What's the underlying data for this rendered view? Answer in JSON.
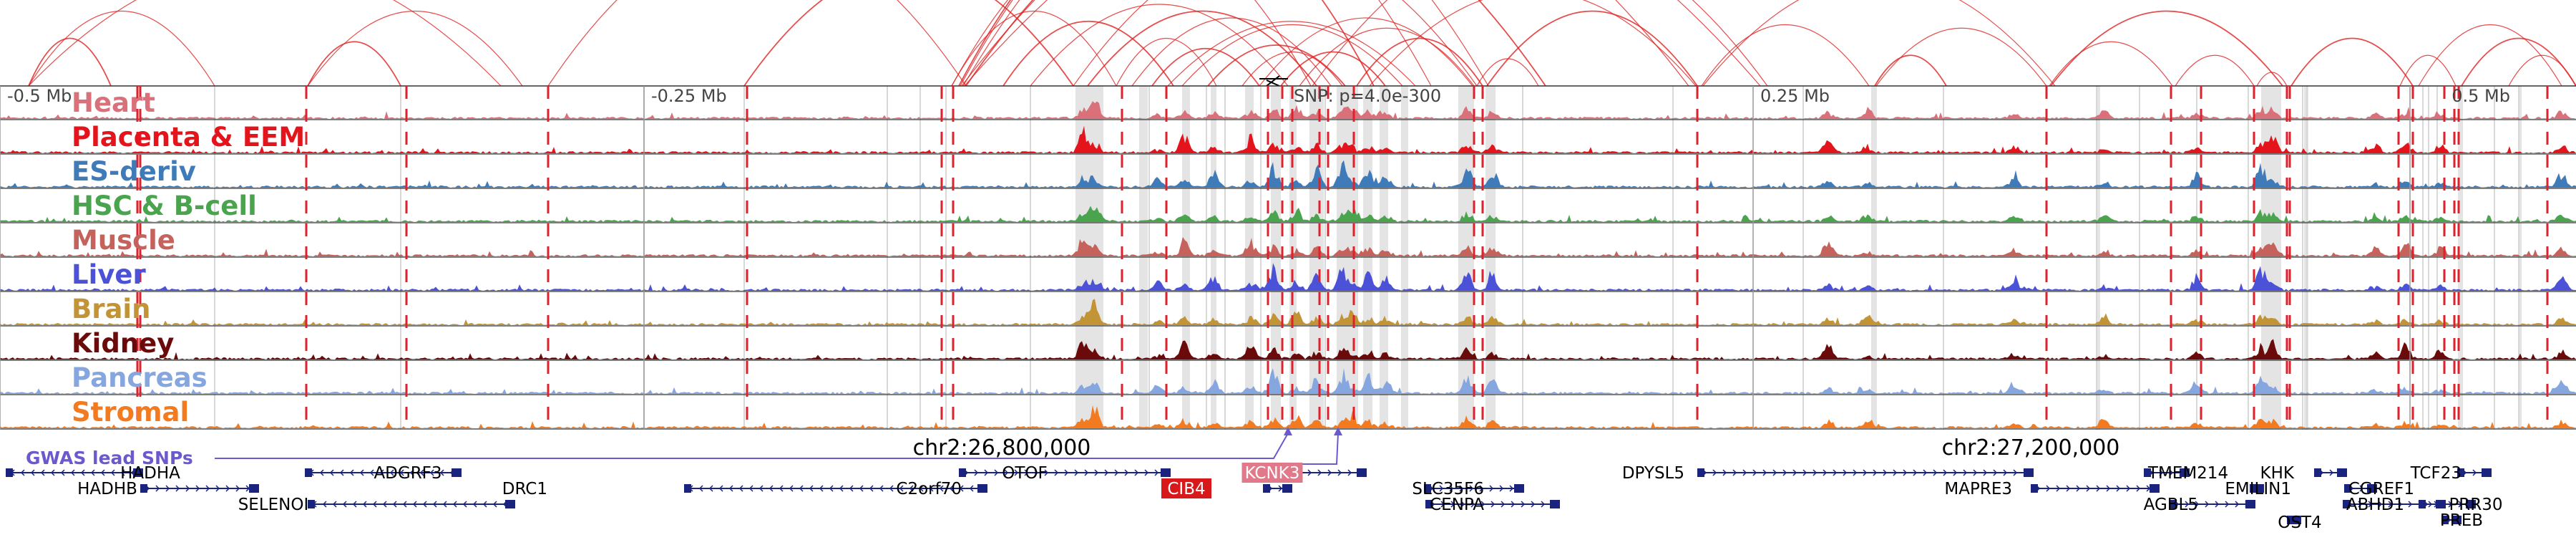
{
  "scale": {
    "ticks": [
      {
        "label": "-0.5 Mb",
        "pos": -0.5
      },
      {
        "label": "-0.25 Mb",
        "pos": -0.25
      },
      {
        "label": "0.25 Mb",
        "pos": 0.25
      },
      {
        "label": "0.5 Mb",
        "pos": 0.5
      }
    ],
    "snp_label": "SNP: p=4.0e-300"
  },
  "tracks": [
    {
      "name": "Heart",
      "color": "#d9707a"
    },
    {
      "name": "Placenta & EEM",
      "color": "#e4141c"
    },
    {
      "name": "ES-deriv",
      "color": "#3f7bb8"
    },
    {
      "name": "HSC & B-cell",
      "color": "#4aa44d"
    },
    {
      "name": "Muscle",
      "color": "#c5625b"
    },
    {
      "name": "Liver",
      "color": "#4b52d8"
    },
    {
      "name": "Brain",
      "color": "#c29436"
    },
    {
      "name": "Kidney",
      "color": "#6b0a0a"
    },
    {
      "name": "Pancreas",
      "color": "#86a6e0"
    },
    {
      "name": "Stromal",
      "color": "#f47a20"
    }
  ],
  "gwas_label": "GWAS lead SNPs",
  "coordinates": [
    {
      "label": "chr2:26,800,000"
    },
    {
      "label": "chr2:27,200,000"
    }
  ],
  "genes": [
    {
      "name": "HADHA",
      "highlight": false
    },
    {
      "name": "HADHB",
      "highlight": false
    },
    {
      "name": "SELENOI",
      "highlight": false
    },
    {
      "name": "ADGRF3",
      "highlight": false
    },
    {
      "name": "DRC1",
      "highlight": false
    },
    {
      "name": "OTOF",
      "highlight": false
    },
    {
      "name": "C2orf70",
      "highlight": false
    },
    {
      "name": "CIB4",
      "highlight": true,
      "highlight_color": "#d7191c"
    },
    {
      "name": "KCNK3",
      "highlight": true,
      "highlight_color": "#e07a8a"
    },
    {
      "name": "SLC35F6",
      "highlight": false
    },
    {
      "name": "CENPA",
      "highlight": false
    },
    {
      "name": "DPYSL5",
      "highlight": false
    },
    {
      "name": "MAPRE3",
      "highlight": false
    },
    {
      "name": "TMEM214",
      "highlight": false
    },
    {
      "name": "AGBL5",
      "highlight": false
    },
    {
      "name": "EMILIN1",
      "highlight": false
    },
    {
      "name": "KHK",
      "highlight": false
    },
    {
      "name": "OST4",
      "highlight": false
    },
    {
      "name": "CGREF1",
      "highlight": false
    },
    {
      "name": "ABHD1",
      "highlight": false
    },
    {
      "name": "TCF23",
      "highlight": false
    },
    {
      "name": "PRR30",
      "highlight": false
    },
    {
      "name": "PREB",
      "highlight": false
    }
  ],
  "colors": {
    "loop": "#e02020",
    "dashed": "#e0202a",
    "gwas": "#6a5acd",
    "gene": "#1a237e",
    "highlight_band": "#e4e4e4"
  }
}
